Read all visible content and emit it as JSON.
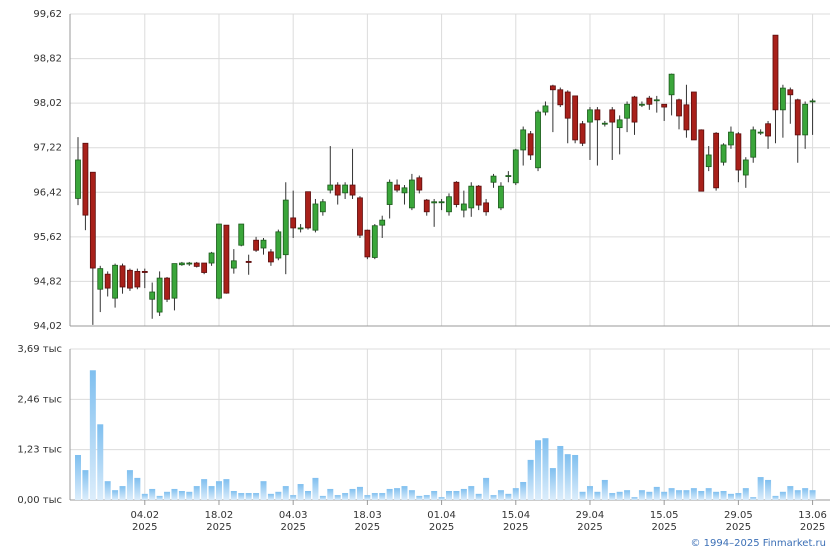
{
  "chart_data": [
    {
      "type": "candlestick",
      "up_color": "#3aa63a",
      "down_color": "#a8201a",
      "grid": true,
      "ylim": [
        94.02,
        99.62
      ],
      "yticks": [
        {
          "value": 94.02,
          "label": "94,02"
        },
        {
          "value": 94.82,
          "label": "94,82"
        },
        {
          "value": 95.62,
          "label": "95,62"
        },
        {
          "value": 96.42,
          "label": "96,42"
        },
        {
          "value": 97.22,
          "label": "97,22"
        },
        {
          "value": 98.02,
          "label": "98,02"
        },
        {
          "value": 98.82,
          "label": "98,82"
        },
        {
          "value": 99.62,
          "label": "99,62"
        }
      ],
      "open": [
        96.31,
        97.3,
        96.78,
        94.68,
        94.95,
        94.52,
        95.1,
        95.02,
        95.0,
        95.0,
        94.5,
        94.27,
        94.88,
        94.52,
        95.12,
        95.14,
        95.15,
        95.15,
        95.15,
        94.52,
        95.83,
        95.06,
        95.47,
        95.18,
        95.56,
        95.42,
        95.35,
        95.24,
        95.3,
        95.96,
        95.78,
        96.43,
        95.74,
        96.07,
        96.46,
        96.55,
        96.41,
        96.55,
        96.32,
        95.74,
        95.25,
        95.83,
        96.2,
        96.55,
        96.41,
        96.14,
        96.68,
        96.28,
        96.23,
        96.24,
        96.07,
        96.6,
        96.1,
        96.14,
        96.53,
        96.23,
        96.6,
        96.14,
        96.72,
        96.59,
        97.18,
        97.47,
        96.86,
        97.86,
        98.33,
        98.26,
        98.22,
        98.15,
        97.65,
        97.68,
        97.9,
        97.66,
        97.9,
        97.58,
        97.75,
        98.13,
        98.0,
        98.11,
        98.08,
        98.0,
        98.17,
        98.08,
        97.99,
        98.22,
        97.54,
        96.88,
        97.48,
        96.96,
        97.27,
        97.47,
        96.73,
        97.05,
        97.5,
        97.65,
        99.24,
        97.9,
        98.26,
        98.08,
        97.45,
        98.06
      ],
      "high": [
        97.41,
        97.3,
        96.78,
        95.1,
        95.0,
        95.14,
        95.14,
        95.05,
        95.05,
        95.05,
        94.8,
        95.0,
        94.9,
        95.14,
        95.17,
        95.17,
        95.17,
        95.15,
        95.35,
        95.85,
        95.83,
        95.4,
        95.85,
        95.3,
        95.62,
        95.6,
        95.4,
        95.75,
        96.6,
        96.45,
        95.85,
        96.43,
        96.3,
        96.3,
        97.25,
        96.6,
        96.6,
        97.2,
        96.35,
        95.75,
        95.85,
        96.0,
        96.65,
        96.65,
        96.55,
        96.75,
        96.72,
        96.3,
        96.3,
        96.3,
        96.4,
        96.62,
        96.45,
        96.6,
        96.55,
        96.3,
        96.75,
        96.6,
        96.8,
        97.2,
        97.6,
        97.52,
        97.9,
        98.05,
        98.35,
        98.3,
        98.25,
        98.15,
        97.7,
        97.95,
        97.95,
        97.7,
        97.95,
        97.8,
        98.05,
        98.15,
        98.05,
        98.15,
        98.15,
        98.0,
        98.55,
        98.1,
        98.35,
        98.22,
        97.55,
        97.25,
        97.5,
        97.3,
        97.6,
        97.5,
        97.05,
        97.6,
        97.55,
        97.7,
        99.24,
        98.35,
        98.3,
        98.1,
        98.05,
        98.1
      ],
      "low": [
        96.19,
        95.74,
        94.04,
        94.27,
        94.55,
        94.35,
        94.6,
        94.65,
        94.68,
        94.7,
        94.15,
        94.2,
        94.45,
        94.3,
        95.1,
        95.1,
        95.07,
        94.95,
        95.1,
        94.5,
        94.6,
        94.96,
        95.45,
        94.94,
        95.35,
        95.3,
        95.1,
        95.2,
        94.95,
        95.6,
        95.7,
        95.75,
        95.7,
        96.0,
        96.4,
        96.2,
        96.3,
        96.3,
        95.6,
        95.22,
        95.22,
        95.6,
        95.95,
        96.42,
        96.2,
        96.1,
        96.4,
        96.0,
        95.8,
        96.1,
        96.0,
        96.15,
        95.97,
        95.98,
        96.1,
        96.0,
        96.5,
        96.1,
        96.6,
        96.55,
        96.9,
        97.0,
        96.8,
        97.8,
        97.5,
        97.95,
        97.3,
        97.3,
        97.25,
        97.0,
        96.9,
        97.6,
        97.0,
        97.1,
        97.5,
        97.45,
        97.95,
        97.9,
        97.85,
        97.7,
        97.8,
        97.55,
        97.4,
        97.36,
        96.44,
        96.8,
        96.45,
        96.9,
        97.2,
        96.6,
        96.5,
        96.95,
        97.45,
        97.2,
        97.3,
        97.4,
        97.65,
        96.95,
        97.2,
        97.45
      ],
      "close": [
        97.0,
        96.01,
        95.06,
        95.05,
        94.7,
        95.11,
        94.72,
        94.7,
        94.72,
        94.98,
        94.63,
        94.88,
        94.5,
        95.14,
        95.15,
        95.15,
        95.09,
        94.98,
        95.33,
        95.85,
        94.61,
        95.19,
        95.85,
        95.16,
        95.38,
        95.56,
        95.17,
        95.71,
        96.28,
        95.78,
        95.78,
        95.78,
        96.21,
        96.25,
        96.55,
        96.37,
        96.55,
        96.37,
        95.65,
        95.26,
        95.82,
        95.92,
        96.6,
        96.46,
        96.5,
        96.64,
        96.46,
        96.07,
        96.25,
        96.25,
        96.34,
        96.2,
        96.21,
        96.53,
        96.19,
        96.07,
        96.71,
        96.53,
        96.72,
        97.18,
        97.54,
        97.09,
        97.86,
        97.97,
        98.26,
        97.99,
        97.75,
        97.36,
        97.3,
        97.9,
        97.72,
        97.66,
        97.68,
        97.72,
        98.0,
        97.68,
        98.0,
        98.0,
        98.08,
        97.95,
        98.54,
        97.79,
        97.54,
        97.36,
        96.44,
        97.09,
        96.5,
        97.27,
        97.5,
        96.82,
        97.0,
        97.54,
        97.5,
        97.43,
        97.9,
        98.29,
        98.17,
        97.45,
        98.0,
        98.06
      ]
    },
    {
      "type": "bar",
      "color": "#7fbfef",
      "grid": true,
      "ylim": [
        0,
        3.69
      ],
      "yticks": [
        {
          "value": 0,
          "label": "0,00 тыс"
        },
        {
          "value": 1.23,
          "label": "1,23 тыс"
        },
        {
          "value": 2.46,
          "label": "2,46 тыс"
        },
        {
          "value": 3.69,
          "label": "3,69 тыс"
        }
      ],
      "xticks": [
        {
          "value": 9,
          "label": "04.02",
          "year": "2025"
        },
        {
          "value": 19,
          "label": "18.02",
          "year": "2025"
        },
        {
          "value": 29,
          "label": "04.03",
          "year": "2025"
        },
        {
          "value": 39,
          "label": "18.03",
          "year": "2025"
        },
        {
          "value": 49,
          "label": "01.04",
          "year": "2025"
        },
        {
          "value": 59,
          "label": "15.04",
          "year": "2025"
        },
        {
          "value": 69,
          "label": "29.04",
          "year": "2025"
        },
        {
          "value": 79,
          "label": "15.05",
          "year": "2025"
        },
        {
          "value": 89,
          "label": "29.05",
          "year": "2025"
        },
        {
          "value": 99,
          "label": "13.06",
          "year": "2025"
        }
      ],
      "values": [
        1.1,
        0.73,
        3.17,
        1.85,
        0.46,
        0.24,
        0.34,
        0.73,
        0.54,
        0.15,
        0.27,
        0.1,
        0.2,
        0.27,
        0.22,
        0.2,
        0.34,
        0.51,
        0.34,
        0.46,
        0.51,
        0.22,
        0.17,
        0.17,
        0.17,
        0.46,
        0.15,
        0.2,
        0.34,
        0.12,
        0.39,
        0.22,
        0.54,
        0.1,
        0.27,
        0.12,
        0.17,
        0.27,
        0.32,
        0.12,
        0.17,
        0.17,
        0.27,
        0.29,
        0.34,
        0.24,
        0.1,
        0.12,
        0.22,
        0.07,
        0.22,
        0.22,
        0.27,
        0.34,
        0.15,
        0.54,
        0.12,
        0.24,
        0.15,
        0.29,
        0.44,
        0.98,
        1.46,
        1.51,
        0.78,
        1.32,
        1.12,
        1.1,
        0.2,
        0.34,
        0.2,
        0.49,
        0.17,
        0.2,
        0.24,
        0.07,
        0.24,
        0.2,
        0.32,
        0.2,
        0.29,
        0.24,
        0.24,
        0.29,
        0.22,
        0.29,
        0.2,
        0.22,
        0.15,
        0.17,
        0.29,
        0.07,
        0.56,
        0.49,
        0.1,
        0.2,
        0.34,
        0.24,
        0.29,
        0.24
      ]
    }
  ],
  "credit": "© 1994–2025 Finmarket.ru"
}
